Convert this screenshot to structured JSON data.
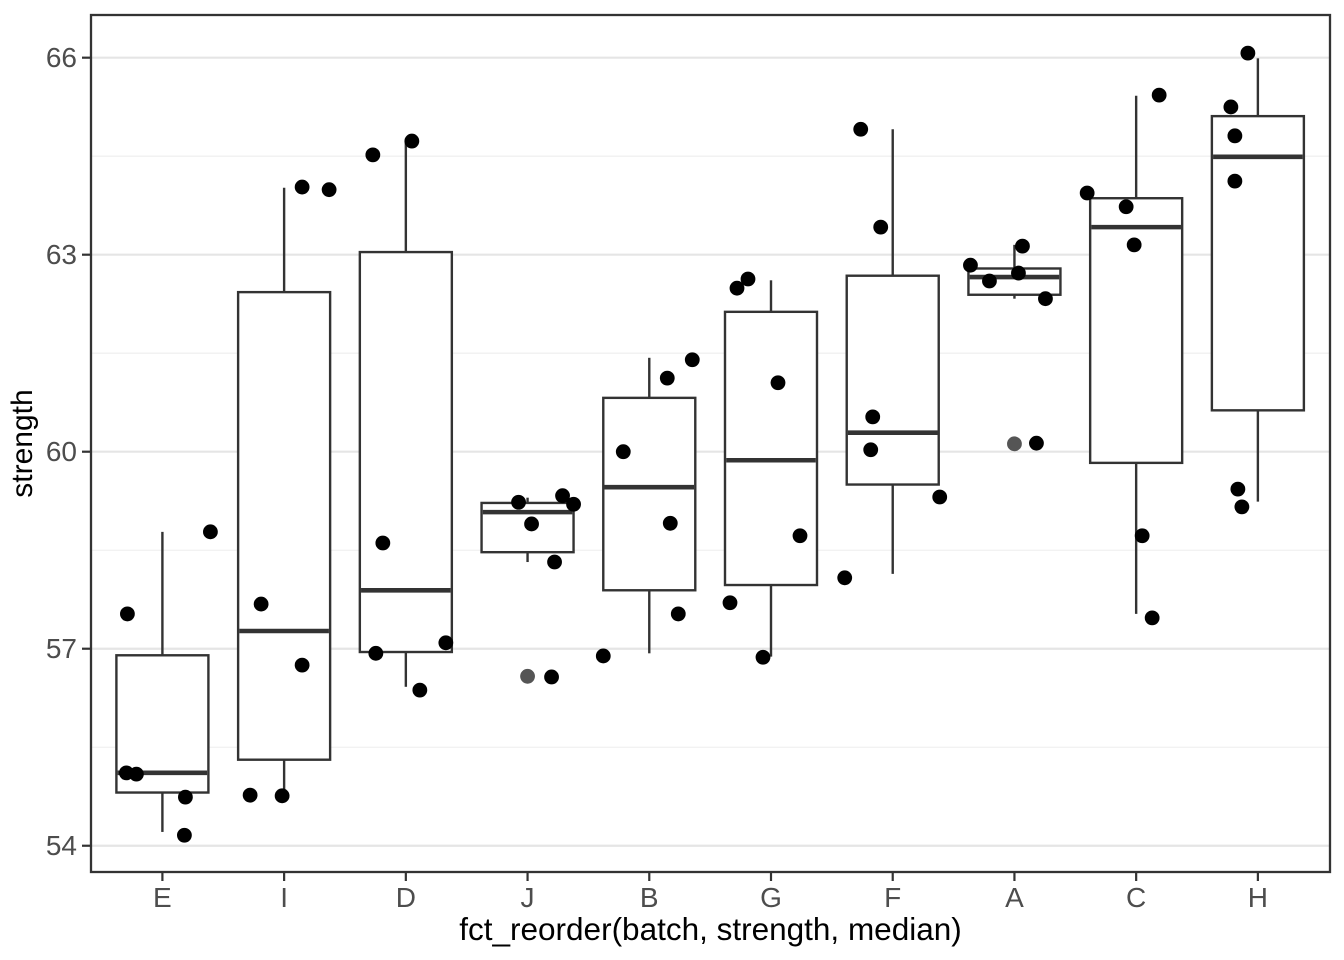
{
  "chart_data": {
    "type": "boxplot",
    "title": "",
    "xlabel": "fct_reorder(batch, strength, median)",
    "ylabel": "strength",
    "categories": [
      "E",
      "I",
      "D",
      "J",
      "B",
      "G",
      "F",
      "A",
      "C",
      "H"
    ],
    "ylim": [
      53.6,
      66.65
    ],
    "y_major_ticks": [
      54,
      57,
      60,
      63,
      66
    ],
    "y_minor_gridlines": [
      55.5,
      58.5,
      61.5,
      64.5
    ],
    "grid": "major+minor",
    "legend": false,
    "series": [
      {
        "batch": "E",
        "whisker_low": 54.21,
        "q1": 54.81,
        "median": 55.11,
        "q3": 56.9,
        "whisker_high": 58.78,
        "points": [
          {
            "dx": -35,
            "v": 57.53
          },
          {
            "dx": 48,
            "v": 58.78
          },
          {
            "dx": -36,
            "v": 55.11
          },
          {
            "dx": -26,
            "v": 55.09
          },
          {
            "dx": 23,
            "v": 54.74
          },
          {
            "dx": 22,
            "v": 54.16
          }
        ]
      },
      {
        "batch": "I",
        "whisker_low": 54.76,
        "q1": 55.31,
        "median": 57.27,
        "q3": 62.43,
        "whisker_high": 64.02,
        "points": [
          {
            "dx": 18,
            "v": 64.03
          },
          {
            "dx": 45,
            "v": 63.99
          },
          {
            "dx": -23,
            "v": 57.68
          },
          {
            "dx": 18,
            "v": 56.75
          },
          {
            "dx": -34,
            "v": 54.77
          },
          {
            "dx": -2,
            "v": 54.76
          }
        ]
      },
      {
        "batch": "D",
        "whisker_low": 56.42,
        "q1": 56.95,
        "median": 57.89,
        "q3": 63.04,
        "whisker_high": 64.72,
        "points": [
          {
            "dx": -33,
            "v": 64.52
          },
          {
            "dx": 6,
            "v": 64.73
          },
          {
            "dx": -23,
            "v": 58.61
          },
          {
            "dx": -30,
            "v": 56.93
          },
          {
            "dx": 40,
            "v": 57.09
          },
          {
            "dx": 14,
            "v": 56.37
          }
        ]
      },
      {
        "batch": "J",
        "whisker_low": 58.32,
        "q1": 58.47,
        "median": 59.08,
        "q3": 59.22,
        "whisker_high": 59.3,
        "points": [
          {
            "dx": -9,
            "v": 59.23
          },
          {
            "dx": 35,
            "v": 59.33
          },
          {
            "dx": 46,
            "v": 59.2
          },
          {
            "dx": 4,
            "v": 58.9
          },
          {
            "dx": 27,
            "v": 58.32
          },
          {
            "dx": 0,
            "v": 56.58,
            "gray": true
          },
          {
            "dx": 24,
            "v": 56.57
          }
        ]
      },
      {
        "batch": "B",
        "whisker_low": 56.93,
        "q1": 57.89,
        "median": 59.46,
        "q3": 60.82,
        "whisker_high": 61.43,
        "points": [
          {
            "dx": 43,
            "v": 61.4
          },
          {
            "dx": 18,
            "v": 61.12
          },
          {
            "dx": -26,
            "v": 60.0
          },
          {
            "dx": 21,
            "v": 58.91
          },
          {
            "dx": 29,
            "v": 57.53
          },
          {
            "dx": -46,
            "v": 56.89
          }
        ]
      },
      {
        "batch": "G",
        "whisker_low": 56.88,
        "q1": 57.97,
        "median": 59.87,
        "q3": 62.13,
        "whisker_high": 62.61,
        "points": [
          {
            "dx": -23,
            "v": 62.63
          },
          {
            "dx": -34,
            "v": 62.49
          },
          {
            "dx": 7,
            "v": 61.05
          },
          {
            "dx": 29,
            "v": 58.72
          },
          {
            "dx": -41,
            "v": 57.7
          },
          {
            "dx": -8,
            "v": 56.87
          }
        ]
      },
      {
        "batch": "F",
        "whisker_low": 58.14,
        "q1": 59.5,
        "median": 60.29,
        "q3": 62.68,
        "whisker_high": 64.91,
        "points": [
          {
            "dx": -32,
            "v": 64.91
          },
          {
            "dx": -12,
            "v": 63.42
          },
          {
            "dx": -20,
            "v": 60.53
          },
          {
            "dx": -22,
            "v": 60.03
          },
          {
            "dx": 47,
            "v": 59.31
          },
          {
            "dx": -48,
            "v": 58.08
          }
        ]
      },
      {
        "batch": "A",
        "whisker_low": 62.33,
        "q1": 62.39,
        "median": 62.66,
        "q3": 62.79,
        "whisker_high": 63.15,
        "points": [
          {
            "dx": -44,
            "v": 62.84
          },
          {
            "dx": 8,
            "v": 63.13
          },
          {
            "dx": 4,
            "v": 62.72
          },
          {
            "dx": -25,
            "v": 62.6
          },
          {
            "dx": 31,
            "v": 62.33
          },
          {
            "dx": 0,
            "v": 60.12,
            "gray": true
          },
          {
            "dx": 22,
            "v": 60.13
          }
        ]
      },
      {
        "batch": "C",
        "whisker_low": 57.53,
        "q1": 59.83,
        "median": 63.42,
        "q3": 63.86,
        "whisker_high": 65.42,
        "points": [
          {
            "dx": 23,
            "v": 65.43
          },
          {
            "dx": -49,
            "v": 63.94
          },
          {
            "dx": -10,
            "v": 63.73
          },
          {
            "dx": -2,
            "v": 63.15
          },
          {
            "dx": 6,
            "v": 58.72
          },
          {
            "dx": 16,
            "v": 57.47
          }
        ]
      },
      {
        "batch": "H",
        "whisker_low": 59.24,
        "q1": 60.63,
        "median": 64.49,
        "q3": 65.11,
        "whisker_high": 65.99,
        "points": [
          {
            "dx": -10,
            "v": 66.07
          },
          {
            "dx": -27,
            "v": 65.25
          },
          {
            "dx": -23,
            "v": 64.81
          },
          {
            "dx": -23,
            "v": 64.12
          },
          {
            "dx": -20,
            "v": 59.43
          },
          {
            "dx": -16,
            "v": 59.16
          }
        ]
      }
    ],
    "colors": {
      "point": "#000000",
      "gray_point": "#555555",
      "box_stroke": "#333333",
      "grid_major": "#e5e5e5",
      "grid_minor": "#f1f1f1",
      "tick_label": "#4d4d4d",
      "axis_title": "#000000",
      "background": "#ffffff"
    }
  }
}
